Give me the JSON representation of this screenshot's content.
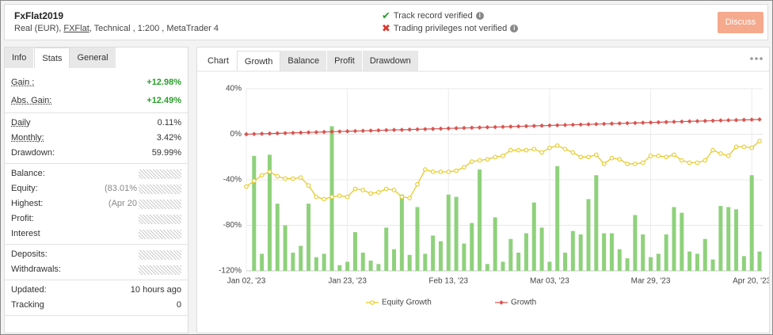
{
  "header": {
    "title": "FxFlat2019",
    "account": "Real (EUR),",
    "broker": "FXFlat",
    "details": ", Technical , 1:200 , MetaTrader 4"
  },
  "status": [
    "Track record verified",
    "Trading privileges not verified"
  ],
  "button": "Discuss",
  "stats_tabs": [
    "Info",
    "Stats",
    "General"
  ],
  "stats": [
    [
      {
        "label": "Gain :",
        "value": "+12.98%"
      },
      {
        "label": "Abs. Gain:",
        "value": "+12.49%"
      }
    ],
    [
      {
        "label": "Daily",
        "value": "0.11%"
      },
      {
        "label": "Monthly:",
        "value": "3.42%"
      },
      {
        "label": "Drawdown:",
        "value": "59.99%"
      }
    ],
    [
      {
        "label": "Balance:"
      },
      {
        "label": "Equity:",
        "value": "(83.01%"
      },
      {
        "label": "Highest:",
        "value": "(Apr 20"
      },
      {
        "label": "Profit:"
      },
      {
        "label": "Interest"
      }
    ],
    [
      {
        "label": "Deposits:"
      },
      {
        "label": "Withdrawals:"
      }
    ],
    [
      {
        "label": "Updated:",
        "value": "10 hours ago"
      },
      {
        "label": "Tracking",
        "value": "0"
      }
    ]
  ],
  "chart_tabs": [
    "Chart",
    "Growth",
    "Balance",
    "Profit",
    "Drawdown"
  ],
  "chart_data": {
    "type": "line",
    "categories": [
      "Jan 02, '23",
      null,
      null,
      null,
      null,
      null,
      null,
      null,
      null,
      null,
      null,
      null,
      null,
      "Jan 23, '23",
      null,
      null,
      null,
      null,
      null,
      null,
      null,
      null,
      null,
      null,
      null,
      null,
      "Feb 13, '23",
      null,
      null,
      null,
      null,
      null,
      null,
      null,
      null,
      null,
      null,
      null,
      null,
      "Mar 03, '23",
      null,
      null,
      null,
      null,
      null,
      null,
      null,
      null,
      null,
      null,
      null,
      null,
      "Mar 29, '23",
      null,
      null,
      null,
      null,
      null,
      null,
      null,
      null,
      null,
      null,
      null,
      null,
      "Apr 20, '23",
      null
    ],
    "ylim": [
      -120,
      40
    ],
    "yticks": [
      {
        "value": 40,
        "label": "40%"
      },
      {
        "value": 0,
        "label": "0%"
      },
      {
        "value": -40,
        "label": "-40%"
      },
      {
        "value": -80,
        "label": "-80%"
      },
      {
        "value": -120,
        "label": "-120%"
      }
    ],
    "grid": true,
    "series": [
      {
        "type": "bar",
        "color": "#8fd17c",
        "values": [
          null,
          -19,
          -105,
          -18,
          -61,
          -80,
          -104,
          -98,
          -61,
          -108,
          -105,
          7,
          -115,
          -112,
          -86,
          -104,
          -111,
          -114,
          -82,
          -101,
          -53,
          -106,
          -64,
          -105,
          -89,
          -94,
          -53,
          -55,
          -96,
          -78,
          -31,
          -114,
          -73,
          -112,
          -92,
          -104,
          -87,
          -60,
          -82,
          -112,
          -28,
          -104,
          -85,
          -88,
          -57,
          -36,
          -87,
          -87,
          -101,
          -109,
          -71,
          -88,
          -108,
          -105,
          -88,
          -64,
          -69,
          -103,
          -105,
          -92,
          -110,
          -63,
          -64,
          -66,
          -107,
          -36,
          -103
        ]
      },
      {
        "type": "line",
        "name": "Equity Growth",
        "color": "#e6c619",
        "values": [
          -46,
          -41,
          -36,
          -33,
          -37,
          -39,
          -39,
          -38,
          -45,
          -55,
          -57,
          -55,
          -54,
          -55,
          -48,
          -49,
          -52,
          -51,
          -48,
          -49,
          -55,
          -56,
          -44,
          -31,
          -33,
          -33,
          -33,
          -32,
          -29,
          -24,
          -23,
          -22,
          -20,
          -19,
          -14,
          -14,
          -14,
          -13,
          -16,
          -12,
          -10,
          -13,
          -16,
          -20,
          -20,
          -18,
          -26,
          -21,
          -22,
          -26,
          -26,
          -25,
          -19,
          -19,
          -20,
          -18,
          -23,
          -25,
          -25,
          -23,
          -14,
          -17,
          -19,
          -11,
          -11,
          -12,
          -6
        ]
      },
      {
        "type": "line",
        "name": "Growth",
        "color": "#d9534f",
        "values": [
          0,
          0.2,
          0.4,
          0.6,
          0.8,
          1,
          1.2,
          1.4,
          1.6,
          1.8,
          2,
          2.2,
          2.4,
          2.6,
          2.8,
          3,
          3.2,
          3.4,
          3.6,
          3.8,
          3.9,
          4.1,
          4.3,
          4.5,
          4.7,
          4.9,
          5.1,
          5.3,
          5.5,
          5.7,
          5.9,
          6.1,
          6.3,
          6.5,
          6.7,
          6.9,
          7.1,
          7.3,
          7.5,
          7.7,
          7.9,
          8.1,
          8.3,
          8.5,
          8.7,
          8.9,
          9.1,
          9.3,
          9.5,
          9.7,
          9.9,
          10.1,
          10.3,
          10.5,
          10.7,
          10.9,
          11.1,
          11.3,
          11.5,
          11.7,
          11.9,
          12.1,
          12.3,
          12.4,
          12.6,
          12.8,
          13
        ]
      }
    ]
  }
}
